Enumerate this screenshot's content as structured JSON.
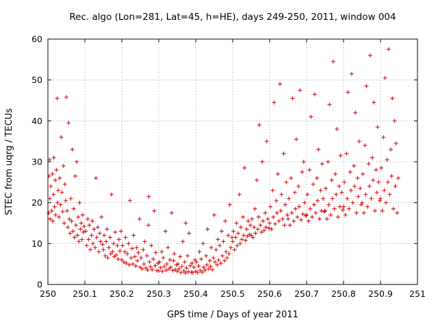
{
  "chart_data": {
    "type": "scatter",
    "title": "Rec. algo (Lon=281, Lat=45, h=HE), days 249-250, 2011, window 004",
    "xlabel": "GPS time / Days of year 2011",
    "ylabel": "STEC from uqrg / TECUs",
    "xlim": [
      250,
      251
    ],
    "ylim": [
      0,
      60
    ],
    "xtick_values": [
      250,
      250.1,
      250.2,
      250.3,
      250.4,
      250.5,
      250.6,
      250.7,
      250.8,
      250.9,
      251
    ],
    "xtick_labels": [
      "250",
      "250.1",
      "250.2",
      "250.3",
      "250.4",
      "250.5",
      "250.6",
      "250.7",
      "250.8",
      "250.9",
      "251"
    ],
    "ytick_values": [
      0,
      10,
      20,
      30,
      40,
      50,
      60
    ],
    "ytick_labels": [
      "0",
      "10",
      "20",
      "30",
      "40",
      "50",
      "60"
    ],
    "grid": true,
    "legend": "none",
    "marker": "plus",
    "marker_color": "#dd1c1c",
    "grid_color": "#a0a0a0",
    "border_color": "#000000",
    "points": [
      [
        250.002,
        17.5
      ],
      [
        250.003,
        26.5
      ],
      [
        250.004,
        30.5
      ],
      [
        250.005,
        21
      ],
      [
        250.006,
        16
      ],
      [
        250.008,
        24
      ],
      [
        250.01,
        18
      ],
      [
        250.012,
        27
      ],
      [
        250.013,
        15.5
      ],
      [
        250.015,
        22
      ],
      [
        250.016,
        31
      ],
      [
        250.018,
        19
      ],
      [
        250.02,
        25.5
      ],
      [
        250.021,
        17
      ],
      [
        250.023,
        28
      ],
      [
        250.025,
        45.5
      ],
      [
        250.026,
        20
      ],
      [
        250.028,
        23
      ],
      [
        250.03,
        16.5
      ],
      [
        250.032,
        26
      ],
      [
        250.034,
        19.5
      ],
      [
        250.036,
        36
      ],
      [
        250.038,
        22.5
      ],
      [
        250.04,
        17.8
      ],
      [
        250.042,
        29
      ],
      [
        250.044,
        15
      ],
      [
        250.046,
        24.5
      ],
      [
        250.048,
        20.5
      ],
      [
        250.05,
        45.8
      ],
      [
        250.052,
        18
      ],
      [
        250.054,
        14
      ],
      [
        250.056,
        39.5
      ],
      [
        250.058,
        16
      ],
      [
        250.06,
        12.5
      ],
      [
        250.062,
        21
      ],
      [
        250.064,
        15.5
      ],
      [
        250.066,
        33
      ],
      [
        250.068,
        13
      ],
      [
        250.07,
        18.5
      ],
      [
        250.072,
        11.5
      ],
      [
        250.074,
        26.5
      ],
      [
        250.076,
        14.5
      ],
      [
        250.078,
        30
      ],
      [
        250.08,
        12
      ],
      [
        250.082,
        16.5
      ],
      [
        250.084,
        10.5
      ],
      [
        250.086,
        20
      ],
      [
        250.088,
        13.5
      ],
      [
        250.09,
        15
      ],
      [
        250.092,
        11
      ],
      [
        250.094,
        17
      ],
      [
        250.096,
        12.8
      ],
      [
        250.098,
        14.2
      ],
      [
        250.102,
        13
      ],
      [
        250.105,
        9.5
      ],
      [
        250.108,
        16
      ],
      [
        250.11,
        11
      ],
      [
        250.112,
        14.5
      ],
      [
        250.115,
        8.5
      ],
      [
        250.118,
        12
      ],
      [
        250.12,
        15.5
      ],
      [
        250.122,
        10
      ],
      [
        250.125,
        13.5
      ],
      [
        250.128,
        9
      ],
      [
        250.13,
        26
      ],
      [
        250.132,
        11.5
      ],
      [
        250.135,
        14
      ],
      [
        250.138,
        8
      ],
      [
        250.14,
        12.5
      ],
      [
        250.142,
        10.5
      ],
      [
        250.145,
        16.5
      ],
      [
        250.148,
        9.8
      ],
      [
        250.15,
        8.5
      ],
      [
        250.152,
        12
      ],
      [
        250.155,
        7
      ],
      [
        250.158,
        10.5
      ],
      [
        250.16,
        13.5
      ],
      [
        250.162,
        6.5
      ],
      [
        250.165,
        9
      ],
      [
        250.168,
        11.5
      ],
      [
        250.17,
        7.5
      ],
      [
        250.172,
        22
      ],
      [
        250.175,
        8
      ],
      [
        250.178,
        10
      ],
      [
        250.18,
        6.8
      ],
      [
        250.182,
        12.8
      ],
      [
        250.185,
        7.2
      ],
      [
        250.188,
        9.5
      ],
      [
        250.19,
        6.2
      ],
      [
        250.192,
        11
      ],
      [
        250.195,
        8.2
      ],
      [
        250.198,
        13
      ],
      [
        250.2,
        6
      ],
      [
        250.202,
        9.5
      ],
      [
        250.205,
        5.5
      ],
      [
        250.208,
        8
      ],
      [
        250.21,
        11.5
      ],
      [
        250.212,
        5.2
      ],
      [
        250.215,
        7.5
      ],
      [
        250.218,
        10
      ],
      [
        250.22,
        4.8
      ],
      [
        250.222,
        20.5
      ],
      [
        250.225,
        6.5
      ],
      [
        250.228,
        8.8
      ],
      [
        250.23,
        5
      ],
      [
        250.232,
        12
      ],
      [
        250.235,
        6.8
      ],
      [
        250.238,
        4.5
      ],
      [
        250.24,
        9
      ],
      [
        250.242,
        5.8
      ],
      [
        250.245,
        7.8
      ],
      [
        250.248,
        16
      ],
      [
        250.25,
        4.2
      ],
      [
        250.252,
        6.5
      ],
      [
        250.255,
        3.8
      ],
      [
        250.258,
        8.5
      ],
      [
        250.26,
        5
      ],
      [
        250.262,
        10.5
      ],
      [
        250.265,
        4
      ],
      [
        250.268,
        7
      ],
      [
        250.27,
        3.5
      ],
      [
        250.272,
        14.5
      ],
      [
        250.273,
        21.5
      ],
      [
        250.275,
        5.5
      ],
      [
        250.278,
        4.3
      ],
      [
        250.28,
        9.5
      ],
      [
        250.282,
        3.6
      ],
      [
        250.285,
        6.2
      ],
      [
        250.288,
        18
      ],
      [
        250.29,
        4.6
      ],
      [
        250.292,
        7.8
      ],
      [
        250.295,
        3.4
      ],
      [
        250.298,
        5.2
      ],
      [
        250.3,
        3.3
      ],
      [
        250.302,
        5.5
      ],
      [
        250.305,
        4.1
      ],
      [
        250.308,
        8
      ],
      [
        250.31,
        3.2
      ],
      [
        250.312,
        6.5
      ],
      [
        250.315,
        4.4
      ],
      [
        250.318,
        13
      ],
      [
        250.32,
        3.5
      ],
      [
        250.322,
        5
      ],
      [
        250.325,
        9
      ],
      [
        250.328,
        3.8
      ],
      [
        250.33,
        6
      ],
      [
        250.332,
        4.2
      ],
      [
        250.335,
        17.5
      ],
      [
        250.338,
        3.4
      ],
      [
        250.34,
        5.8
      ],
      [
        250.342,
        7.5
      ],
      [
        250.345,
        3.6
      ],
      [
        250.348,
        4.8
      ],
      [
        250.35,
        3.2
      ],
      [
        250.352,
        5
      ],
      [
        250.355,
        3.8
      ],
      [
        250.358,
        6.8
      ],
      [
        250.36,
        2.9
      ],
      [
        250.362,
        4.4
      ],
      [
        250.365,
        10.5
      ],
      [
        250.368,
        3.3
      ],
      [
        250.37,
        5.5
      ],
      [
        250.372,
        2.8
      ],
      [
        250.373,
        15
      ],
      [
        250.375,
        4
      ],
      [
        250.378,
        7
      ],
      [
        250.38,
        3.1
      ],
      [
        250.382,
        12.5
      ],
      [
        250.385,
        4.6
      ],
      [
        250.388,
        3
      ],
      [
        250.39,
        5.2
      ],
      [
        250.392,
        2.9
      ],
      [
        250.395,
        4.2
      ],
      [
        250.398,
        6
      ],
      [
        250.4,
        3.2
      ],
      [
        250.402,
        5.5
      ],
      [
        250.405,
        2.9
      ],
      [
        250.408,
        4.5
      ],
      [
        250.41,
        8
      ],
      [
        250.412,
        3.4
      ],
      [
        250.415,
        6.2
      ],
      [
        250.418,
        3
      ],
      [
        250.42,
        10
      ],
      [
        250.422,
        4.2
      ],
      [
        250.425,
        3.5
      ],
      [
        250.428,
        7
      ],
      [
        250.43,
        4.8
      ],
      [
        250.432,
        13.5
      ],
      [
        250.435,
        3.8
      ],
      [
        250.438,
        5.8
      ],
      [
        250.44,
        4.4
      ],
      [
        250.442,
        9
      ],
      [
        250.445,
        3.6
      ],
      [
        250.448,
        6.5
      ],
      [
        250.45,
        17
      ],
      [
        250.452,
        5.5
      ],
      [
        250.455,
        8.5
      ],
      [
        250.458,
        4.8
      ],
      [
        250.46,
        11
      ],
      [
        250.462,
        6
      ],
      [
        250.465,
        9.5
      ],
      [
        250.468,
        5.2
      ],
      [
        250.47,
        13
      ],
      [
        250.472,
        7
      ],
      [
        250.475,
        10.5
      ],
      [
        250.478,
        5.8
      ],
      [
        250.48,
        15.5
      ],
      [
        250.482,
        8
      ],
      [
        250.485,
        6.5
      ],
      [
        250.488,
        12
      ],
      [
        250.49,
        7.5
      ],
      [
        250.492,
        19.5
      ],
      [
        250.495,
        9
      ],
      [
        250.498,
        11.5
      ],
      [
        250.5,
        10.5
      ],
      [
        250.502,
        13
      ],
      [
        250.505,
        8.5
      ],
      [
        250.508,
        11.5
      ],
      [
        250.51,
        15
      ],
      [
        250.512,
        9.5
      ],
      [
        250.515,
        12.5
      ],
      [
        250.518,
        22
      ],
      [
        250.52,
        10
      ],
      [
        250.522,
        14
      ],
      [
        250.525,
        11
      ],
      [
        250.528,
        16.5
      ],
      [
        250.53,
        12
      ],
      [
        250.532,
        28.5
      ],
      [
        250.535,
        10.8
      ],
      [
        250.538,
        13.5
      ],
      [
        250.54,
        11.8
      ],
      [
        250.542,
        15.5
      ],
      [
        250.545,
        12.2
      ],
      [
        250.548,
        14.5
      ],
      [
        250.55,
        12
      ],
      [
        250.552,
        16
      ],
      [
        250.555,
        11.5
      ],
      [
        250.558,
        14
      ],
      [
        250.56,
        18.5
      ],
      [
        250.562,
        12.5
      ],
      [
        250.565,
        25.5
      ],
      [
        250.568,
        13.5
      ],
      [
        250.57,
        16.5
      ],
      [
        250.572,
        39
      ],
      [
        250.575,
        14.5
      ],
      [
        250.578,
        12.8
      ],
      [
        250.58,
        30
      ],
      [
        250.582,
        15.5
      ],
      [
        250.585,
        13.2
      ],
      [
        250.588,
        17.5
      ],
      [
        250.59,
        14
      ],
      [
        250.592,
        35
      ],
      [
        250.595,
        16
      ],
      [
        250.598,
        13.8
      ],
      [
        250.6,
        15
      ],
      [
        250.602,
        19
      ],
      [
        250.605,
        13.5
      ],
      [
        250.608,
        23
      ],
      [
        250.61,
        16.5
      ],
      [
        250.612,
        44.5
      ],
      [
        250.615,
        14.8
      ],
      [
        250.618,
        20.5
      ],
      [
        250.62,
        17.5
      ],
      [
        250.622,
        27
      ],
      [
        250.625,
        15.5
      ],
      [
        250.628,
        49
      ],
      [
        250.63,
        18
      ],
      [
        250.632,
        22
      ],
      [
        250.635,
        16
      ],
      [
        250.638,
        32
      ],
      [
        250.64,
        14.5
      ],
      [
        250.642,
        19.5
      ],
      [
        250.645,
        25
      ],
      [
        250.648,
        17
      ],
      [
        250.65,
        16
      ],
      [
        250.652,
        21
      ],
      [
        250.655,
        14.5
      ],
      [
        250.658,
        26
      ],
      [
        250.66,
        17.5
      ],
      [
        250.662,
        45.5
      ],
      [
        250.665,
        15.5
      ],
      [
        250.668,
        22.5
      ],
      [
        250.67,
        18.5
      ],
      [
        250.672,
        35.5
      ],
      [
        250.675,
        16.5
      ],
      [
        250.678,
        24
      ],
      [
        250.68,
        19
      ],
      [
        250.682,
        47.5
      ],
      [
        250.685,
        15.8
      ],
      [
        250.688,
        27.5
      ],
      [
        250.69,
        17.2
      ],
      [
        250.692,
        30
      ],
      [
        250.695,
        20
      ],
      [
        250.698,
        16.8
      ],
      [
        250.7,
        17
      ],
      [
        250.702,
        22
      ],
      [
        250.705,
        15.5
      ],
      [
        250.708,
        28
      ],
      [
        250.71,
        18.5
      ],
      [
        250.712,
        41
      ],
      [
        250.715,
        16.5
      ],
      [
        250.718,
        24.5
      ],
      [
        250.72,
        19.5
      ],
      [
        250.722,
        46.5
      ],
      [
        250.725,
        17.5
      ],
      [
        250.728,
        26
      ],
      [
        250.73,
        20.5
      ],
      [
        250.732,
        33
      ],
      [
        250.735,
        16
      ],
      [
        250.738,
        23
      ],
      [
        250.74,
        18
      ],
      [
        250.742,
        29.5
      ],
      [
        250.745,
        21
      ],
      [
        250.748,
        17.8
      ],
      [
        250.75,
        18
      ],
      [
        250.752,
        23.5
      ],
      [
        250.755,
        16
      ],
      [
        250.758,
        30
      ],
      [
        250.76,
        19.5
      ],
      [
        250.762,
        44
      ],
      [
        250.765,
        17
      ],
      [
        250.768,
        25.5
      ],
      [
        250.77,
        21
      ],
      [
        250.772,
        54.5
      ],
      [
        250.775,
        18.5
      ],
      [
        250.778,
        27
      ],
      [
        250.78,
        22
      ],
      [
        250.782,
        38
      ],
      [
        250.785,
        16.5
      ],
      [
        250.788,
        24
      ],
      [
        250.79,
        19
      ],
      [
        250.792,
        31.5
      ],
      [
        250.795,
        22.5
      ],
      [
        250.798,
        18.2
      ],
      [
        250.8,
        19
      ],
      [
        250.802,
        25
      ],
      [
        250.805,
        17
      ],
      [
        250.808,
        32
      ],
      [
        250.81,
        21
      ],
      [
        250.812,
        47
      ],
      [
        250.815,
        18.5
      ],
      [
        250.818,
        27.5
      ],
      [
        250.82,
        23
      ],
      [
        250.822,
        51.5
      ],
      [
        250.825,
        20
      ],
      [
        250.828,
        29
      ],
      [
        250.83,
        24
      ],
      [
        250.832,
        42
      ],
      [
        250.835,
        17.5
      ],
      [
        250.838,
        26
      ],
      [
        250.84,
        21.5
      ],
      [
        250.842,
        35
      ],
      [
        250.845,
        23.5
      ],
      [
        250.848,
        19.5
      ],
      [
        250.85,
        20
      ],
      [
        250.852,
        27
      ],
      [
        250.855,
        17.5
      ],
      [
        250.858,
        34
      ],
      [
        250.86,
        22
      ],
      [
        250.862,
        48.5
      ],
      [
        250.865,
        19
      ],
      [
        250.868,
        29.5
      ],
      [
        250.87,
        24
      ],
      [
        250.872,
        56
      ],
      [
        250.875,
        21
      ],
      [
        250.878,
        31
      ],
      [
        250.88,
        25.5
      ],
      [
        250.882,
        44.5
      ],
      [
        250.885,
        18
      ],
      [
        250.888,
        28
      ],
      [
        250.89,
        22.5
      ],
      [
        250.892,
        38.5
      ],
      [
        250.895,
        25
      ],
      [
        250.898,
        20.5
      ],
      [
        250.9,
        21
      ],
      [
        250.902,
        28.5
      ],
      [
        250.905,
        18
      ],
      [
        250.908,
        36
      ],
      [
        250.91,
        23
      ],
      [
        250.912,
        50.5
      ],
      [
        250.915,
        20
      ],
      [
        250.918,
        30.5
      ],
      [
        250.92,
        25
      ],
      [
        250.922,
        57.5
      ],
      [
        250.925,
        22
      ],
      [
        250.928,
        33
      ],
      [
        250.93,
        26.5
      ],
      [
        250.932,
        45.5
      ],
      [
        250.935,
        18.5
      ],
      [
        250.938,
        40
      ],
      [
        250.94,
        24
      ],
      [
        250.942,
        34.5
      ],
      [
        250.945,
        17.5
      ],
      [
        250.948,
        26
      ]
    ]
  }
}
